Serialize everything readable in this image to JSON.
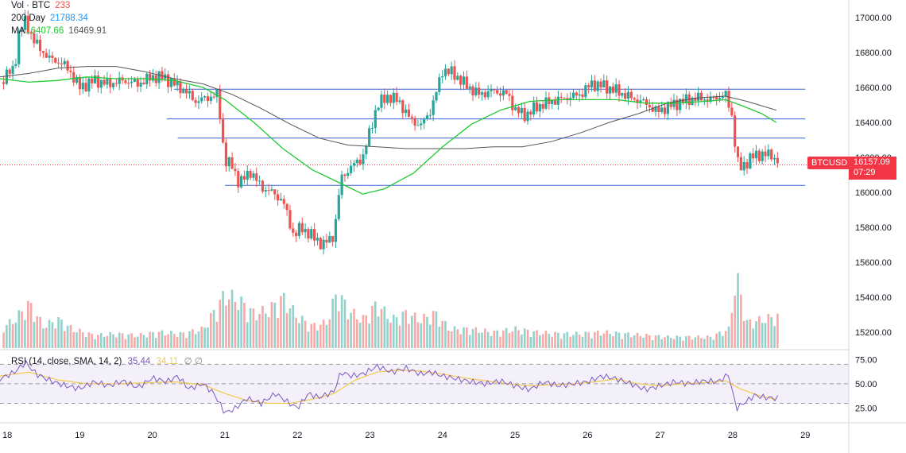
{
  "legend": {
    "vol_label": "Vol · BTC",
    "vol_value": "233",
    "ma200_label": "200 Day",
    "ma200_value": "21788.34",
    "ma_label": "MA",
    "ma_value1": "16407.66",
    "ma_value2": "16469.91"
  },
  "rsi_legend": {
    "label": "RSI (14, close, SMA, 14, 2)",
    "rsi_value": "35.44",
    "sma_value": "34.11",
    "symbol": "∅ ∅"
  },
  "price_badge": {
    "symbol": "BTCUSD",
    "price": "16157.09",
    "countdown": "07:29"
  },
  "colors": {
    "up": "#26a69a",
    "down": "#ef5350",
    "ma_green": "#22c932",
    "ma_gray": "#555555",
    "hline": "#3a62d6",
    "rsi": "#7e57c2",
    "rsi_sma": "#f2c94c",
    "last_price": "#f23645"
  },
  "chart_data": {
    "type": "candlestick",
    "price_axis": {
      "min": 15100,
      "max": 17100,
      "ticks": [
        15200,
        15400,
        15600,
        15800,
        16000,
        16200,
        16400,
        16600,
        16800,
        17000
      ]
    },
    "price_tick_labels": [
      "15200.00",
      "15400.00",
      "15600.00",
      "15800.00",
      "16000.00",
      "16200.00",
      "16400.00",
      "16600.00",
      "16800.00",
      "17000.00"
    ],
    "rsi_axis": {
      "min": 10,
      "max": 85,
      "ticks": [
        25,
        50,
        75
      ],
      "tick_labels": [
        "25.00",
        "50.00",
        "75.00"
      ],
      "bands": [
        30,
        70
      ]
    },
    "x_labels": [
      "18",
      "19",
      "20",
      "21",
      "22",
      "23",
      "24",
      "25",
      "26",
      "27",
      "28",
      "29"
    ],
    "x_start_day": 17.9,
    "x_end_day": 29.6,
    "horizontal_levels": [
      {
        "y": 16590,
        "x_from": 20.3,
        "x_to": 29.0
      },
      {
        "y": 16420,
        "x_from": 20.2,
        "x_to": 29.0
      },
      {
        "y": 16310,
        "x_from": 20.35,
        "x_to": 29.0
      },
      {
        "y": 16040,
        "x_from": 21.0,
        "x_to": 29.0
      }
    ],
    "last_price": 16157.09,
    "price_path": [
      [
        17.9,
        16630
      ],
      [
        18.0,
        16680
      ],
      [
        18.1,
        16700
      ],
      [
        18.15,
        16900
      ],
      [
        18.25,
        16980
      ],
      [
        18.35,
        16880
      ],
      [
        18.45,
        16820
      ],
      [
        18.6,
        16760
      ],
      [
        18.75,
        16740
      ],
      [
        18.85,
        16700
      ],
      [
        19.0,
        16600
      ],
      [
        19.2,
        16640
      ],
      [
        19.4,
        16620
      ],
      [
        19.6,
        16640
      ],
      [
        19.8,
        16620
      ],
      [
        20.0,
        16660
      ],
      [
        20.15,
        16660
      ],
      [
        20.3,
        16620
      ],
      [
        20.45,
        16580
      ],
      [
        20.6,
        16520
      ],
      [
        20.75,
        16540
      ],
      [
        20.9,
        16560
      ],
      [
        21.0,
        16180
      ],
      [
        21.1,
        16150
      ],
      [
        21.2,
        16050
      ],
      [
        21.35,
        16120
      ],
      [
        21.5,
        16030
      ],
      [
        21.65,
        16000
      ],
      [
        21.8,
        15950
      ],
      [
        21.95,
        15750
      ],
      [
        22.05,
        15800
      ],
      [
        22.2,
        15750
      ],
      [
        22.35,
        15700
      ],
      [
        22.5,
        15750
      ],
      [
        22.6,
        16080
      ],
      [
        22.75,
        16150
      ],
      [
        22.9,
        16200
      ],
      [
        23.0,
        16350
      ],
      [
        23.1,
        16500
      ],
      [
        23.25,
        16550
      ],
      [
        23.4,
        16520
      ],
      [
        23.55,
        16420
      ],
      [
        23.7,
        16380
      ],
      [
        23.85,
        16480
      ],
      [
        24.0,
        16700
      ],
      [
        24.15,
        16680
      ],
      [
        24.3,
        16620
      ],
      [
        24.5,
        16560
      ],
      [
        24.7,
        16580
      ],
      [
        24.9,
        16560
      ],
      [
        25.0,
        16470
      ],
      [
        25.15,
        16440
      ],
      [
        25.3,
        16490
      ],
      [
        25.5,
        16520
      ],
      [
        25.7,
        16540
      ],
      [
        25.9,
        16560
      ],
      [
        26.05,
        16620
      ],
      [
        26.2,
        16610
      ],
      [
        26.4,
        16580
      ],
      [
        26.6,
        16540
      ],
      [
        26.8,
        16510
      ],
      [
        26.95,
        16460
      ],
      [
        27.1,
        16490
      ],
      [
        27.3,
        16520
      ],
      [
        27.5,
        16540
      ],
      [
        27.7,
        16530
      ],
      [
        27.9,
        16560
      ],
      [
        28.0,
        16420
      ],
      [
        28.05,
        16200
      ],
      [
        28.1,
        16130
      ],
      [
        28.25,
        16200
      ],
      [
        28.4,
        16220
      ],
      [
        28.55,
        16210
      ],
      [
        28.65,
        16160
      ]
    ],
    "volume_path": [
      [
        17.9,
        60
      ],
      [
        18.1,
        90
      ],
      [
        18.3,
        140
      ],
      [
        18.5,
        70
      ],
      [
        18.7,
        90
      ],
      [
        18.9,
        60
      ],
      [
        19.2,
        40
      ],
      [
        19.5,
        45
      ],
      [
        19.8,
        40
      ],
      [
        20.1,
        50
      ],
      [
        20.4,
        45
      ],
      [
        20.7,
        60
      ],
      [
        21.0,
        170
      ],
      [
        21.2,
        150
      ],
      [
        21.4,
        110
      ],
      [
        21.6,
        120
      ],
      [
        21.8,
        160
      ],
      [
        22.0,
        100
      ],
      [
        22.2,
        70
      ],
      [
        22.4,
        80
      ],
      [
        22.55,
        180
      ],
      [
        22.7,
        120
      ],
      [
        22.9,
        90
      ],
      [
        23.1,
        140
      ],
      [
        23.3,
        90
      ],
      [
        23.5,
        110
      ],
      [
        23.7,
        90
      ],
      [
        23.9,
        110
      ],
      [
        24.1,
        60
      ],
      [
        24.4,
        60
      ],
      [
        24.7,
        50
      ],
      [
        25.0,
        60
      ],
      [
        25.3,
        50
      ],
      [
        25.6,
        45
      ],
      [
        25.9,
        45
      ],
      [
        26.2,
        50
      ],
      [
        26.5,
        45
      ],
      [
        26.8,
        40
      ],
      [
        27.1,
        35
      ],
      [
        27.4,
        35
      ],
      [
        27.7,
        35
      ],
      [
        27.95,
        60
      ],
      [
        28.05,
        230
      ],
      [
        28.2,
        80
      ],
      [
        28.4,
        90
      ],
      [
        28.6,
        100
      ]
    ],
    "ma_green_path": [
      [
        17.9,
        16650
      ],
      [
        18.3,
        16630
      ],
      [
        18.7,
        16640
      ],
      [
        19.1,
        16660
      ],
      [
        19.5,
        16650
      ],
      [
        19.9,
        16650
      ],
      [
        20.3,
        16640
      ],
      [
        20.7,
        16600
      ],
      [
        21.0,
        16530
      ],
      [
        21.4,
        16400
      ],
      [
        21.8,
        16250
      ],
      [
        22.2,
        16130
      ],
      [
        22.6,
        16050
      ],
      [
        22.9,
        15990
      ],
      [
        23.2,
        16020
      ],
      [
        23.6,
        16110
      ],
      [
        24.0,
        16260
      ],
      [
        24.4,
        16390
      ],
      [
        24.8,
        16470
      ],
      [
        25.2,
        16520
      ],
      [
        25.6,
        16530
      ],
      [
        26.0,
        16530
      ],
      [
        26.4,
        16530
      ],
      [
        26.8,
        16510
      ],
      [
        27.2,
        16510
      ],
      [
        27.6,
        16520
      ],
      [
        27.9,
        16530
      ],
      [
        28.1,
        16500
      ],
      [
        28.4,
        16450
      ],
      [
        28.6,
        16400
      ]
    ],
    "ma_gray_path": [
      [
        17.9,
        16660
      ],
      [
        18.3,
        16680
      ],
      [
        18.7,
        16710
      ],
      [
        19.1,
        16720
      ],
      [
        19.5,
        16720
      ],
      [
        19.9,
        16690
      ],
      [
        20.3,
        16650
      ],
      [
        20.7,
        16620
      ],
      [
        21.1,
        16560
      ],
      [
        21.5,
        16480
      ],
      [
        21.9,
        16390
      ],
      [
        22.3,
        16310
      ],
      [
        22.7,
        16270
      ],
      [
        23.1,
        16260
      ],
      [
        23.5,
        16250
      ],
      [
        23.9,
        16250
      ],
      [
        24.3,
        16250
      ],
      [
        24.7,
        16260
      ],
      [
        25.1,
        16260
      ],
      [
        25.5,
        16290
      ],
      [
        25.9,
        16340
      ],
      [
        26.3,
        16400
      ],
      [
        26.7,
        16450
      ],
      [
        27.1,
        16510
      ],
      [
        27.5,
        16540
      ],
      [
        27.9,
        16550
      ],
      [
        28.2,
        16520
      ],
      [
        28.6,
        16470
      ]
    ],
    "rsi_path": [
      [
        17.9,
        55
      ],
      [
        18.1,
        62
      ],
      [
        18.25,
        72
      ],
      [
        18.4,
        60
      ],
      [
        18.6,
        53
      ],
      [
        18.8,
        48
      ],
      [
        19.0,
        45
      ],
      [
        19.2,
        52
      ],
      [
        19.4,
        48
      ],
      [
        19.6,
        53
      ],
      [
        19.8,
        46
      ],
      [
        20.0,
        56
      ],
      [
        20.2,
        52
      ],
      [
        20.35,
        58
      ],
      [
        20.5,
        45
      ],
      [
        20.7,
        50
      ],
      [
        20.85,
        40
      ],
      [
        21.0,
        20
      ],
      [
        21.15,
        25
      ],
      [
        21.3,
        35
      ],
      [
        21.5,
        30
      ],
      [
        21.7,
        40
      ],
      [
        21.85,
        32
      ],
      [
        22.0,
        25
      ],
      [
        22.15,
        40
      ],
      [
        22.3,
        36
      ],
      [
        22.5,
        42
      ],
      [
        22.6,
        62
      ],
      [
        22.75,
        58
      ],
      [
        22.9,
        60
      ],
      [
        23.1,
        68
      ],
      [
        23.3,
        62
      ],
      [
        23.5,
        66
      ],
      [
        23.7,
        60
      ],
      [
        23.85,
        62
      ],
      [
        24.0,
        58
      ],
      [
        24.2,
        55
      ],
      [
        24.4,
        52
      ],
      [
        24.6,
        50
      ],
      [
        24.8,
        53
      ],
      [
        25.0,
        48
      ],
      [
        25.2,
        44
      ],
      [
        25.4,
        52
      ],
      [
        25.6,
        48
      ],
      [
        25.8,
        50
      ],
      [
        26.0,
        52
      ],
      [
        26.2,
        58
      ],
      [
        26.4,
        55
      ],
      [
        26.6,
        50
      ],
      [
        26.8,
        44
      ],
      [
        27.0,
        48
      ],
      [
        27.2,
        52
      ],
      [
        27.4,
        50
      ],
      [
        27.6,
        53
      ],
      [
        27.8,
        52
      ],
      [
        27.95,
        60
      ],
      [
        28.0,
        40
      ],
      [
        28.05,
        25
      ],
      [
        28.15,
        30
      ],
      [
        28.3,
        38
      ],
      [
        28.45,
        36
      ],
      [
        28.6,
        35
      ]
    ],
    "rsi_sma_path": [
      [
        17.9,
        58
      ],
      [
        18.3,
        62
      ],
      [
        18.7,
        54
      ],
      [
        19.1,
        50
      ],
      [
        19.5,
        50
      ],
      [
        19.9,
        51
      ],
      [
        20.3,
        52
      ],
      [
        20.7,
        49
      ],
      [
        21.0,
        40
      ],
      [
        21.3,
        33
      ],
      [
        21.6,
        30
      ],
      [
        21.9,
        30
      ],
      [
        22.2,
        34
      ],
      [
        22.5,
        40
      ],
      [
        22.8,
        54
      ],
      [
        23.1,
        62
      ],
      [
        23.4,
        64
      ],
      [
        23.7,
        63
      ],
      [
        24.0,
        60
      ],
      [
        24.3,
        56
      ],
      [
        24.6,
        53
      ],
      [
        24.9,
        50
      ],
      [
        25.2,
        48
      ],
      [
        25.5,
        49
      ],
      [
        25.8,
        50
      ],
      [
        26.1,
        52
      ],
      [
        26.4,
        55
      ],
      [
        26.7,
        50
      ],
      [
        27.0,
        48
      ],
      [
        27.3,
        50
      ],
      [
        27.6,
        51
      ],
      [
        27.9,
        53
      ],
      [
        28.1,
        45
      ],
      [
        28.4,
        37
      ],
      [
        28.6,
        34
      ]
    ]
  }
}
